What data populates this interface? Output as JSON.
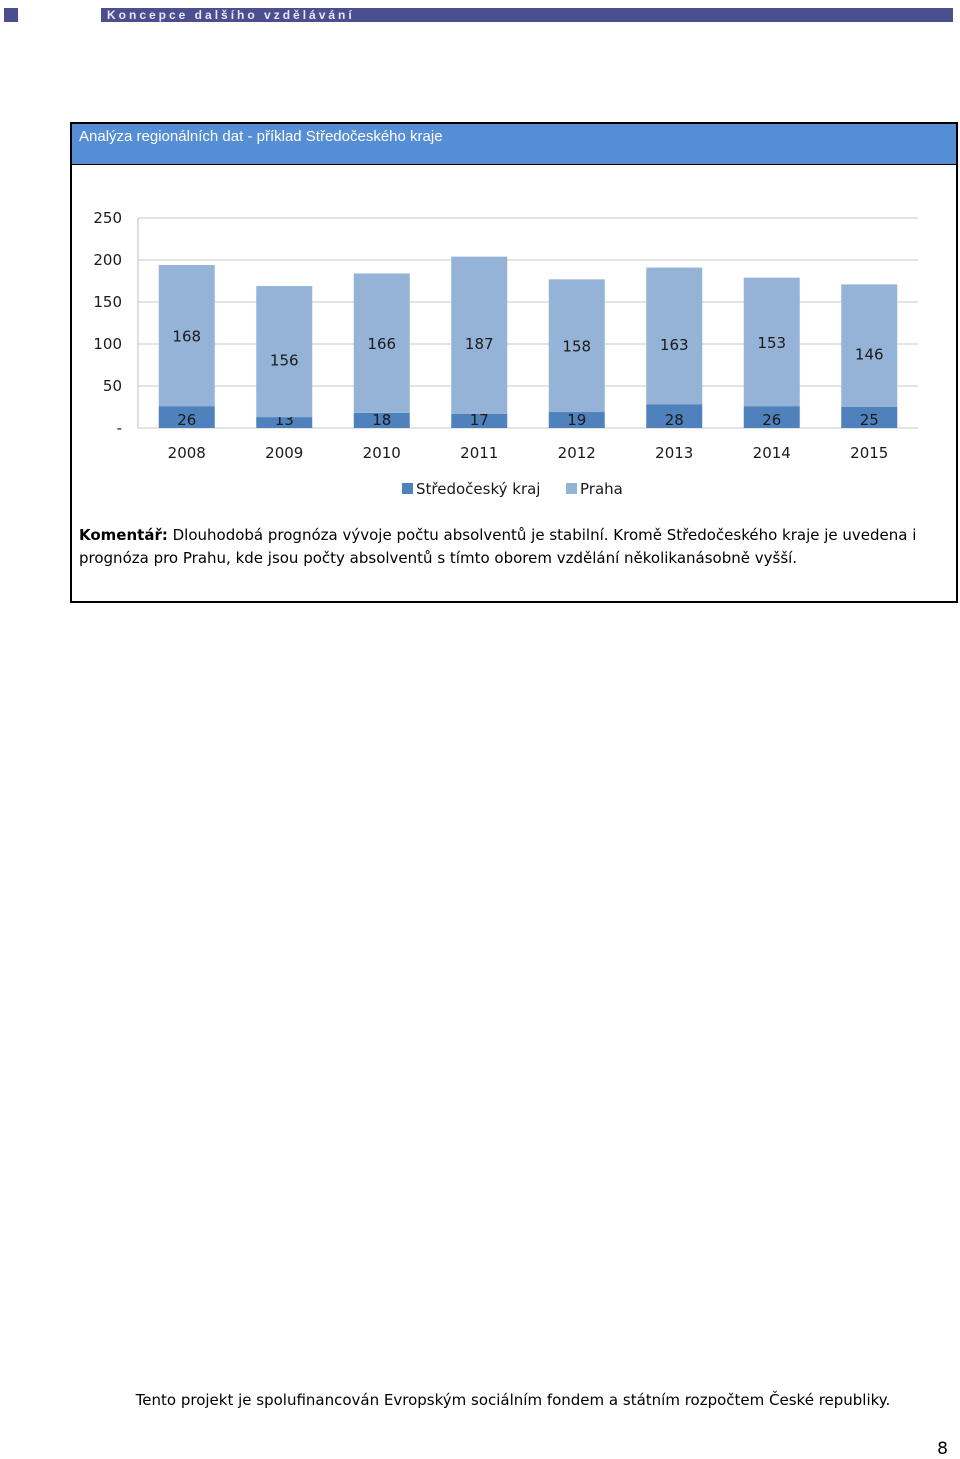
{
  "header": {
    "title": "Koncepce dalšího vzdělávání"
  },
  "panel": {
    "title": "Analýza regionálních dat - příklad Středočeského kraje"
  },
  "chart_data": {
    "type": "bar",
    "stacked": true,
    "categories": [
      "2008",
      "2009",
      "2010",
      "2011",
      "2012",
      "2013",
      "2014",
      "2015"
    ],
    "series": [
      {
        "name": "Středočeský kraj",
        "values": [
          26,
          13,
          18,
          17,
          19,
          28,
          26,
          25
        ],
        "color": "#4f81bd"
      },
      {
        "name": "Praha",
        "values": [
          168,
          156,
          166,
          187,
          158,
          163,
          153,
          146
        ],
        "color": "#95b3d7"
      }
    ],
    "ylim": [
      0,
      250
    ],
    "yticks": [
      0,
      50,
      100,
      150,
      200,
      250
    ],
    "ytick_labels": [
      "-",
      "50",
      "100",
      "150",
      "200",
      "250"
    ],
    "grid": true,
    "legend": "bottom"
  },
  "comment": {
    "label": "Komentář:",
    "text": "Dlouhodobá prognóza vývoje počtu absolventů je stabilní. Kromě Středočeského kraje je uvedena i prognóza pro Prahu, kde jsou počty absolventů s tímto oborem vzdělání několikanásobně vyšší."
  },
  "footer": {
    "text": "Tento projekt je spolufinancován Evropským sociálním fondem a státním rozpočtem České republiky."
  },
  "page_number": "8"
}
